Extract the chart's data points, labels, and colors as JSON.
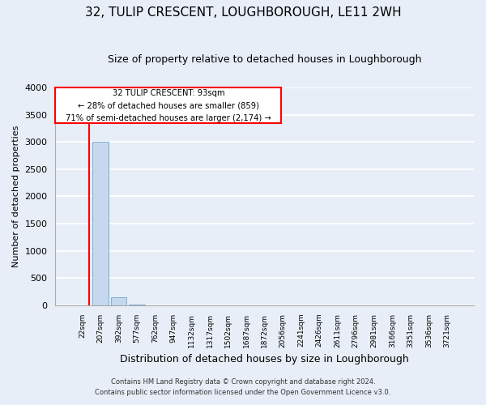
{
  "title": "32, TULIP CRESCENT, LOUGHBOROUGH, LE11 2WH",
  "subtitle": "Size of property relative to detached houses in Loughborough",
  "xlabel": "Distribution of detached houses by size in Loughborough",
  "ylabel": "Number of detached properties",
  "footnote1": "Contains HM Land Registry data © Crown copyright and database right 2024.",
  "footnote2": "Contains public sector information licensed under the Open Government Licence v3.0.",
  "categories": [
    "22sqm",
    "207sqm",
    "392sqm",
    "577sqm",
    "762sqm",
    "947sqm",
    "1132sqm",
    "1317sqm",
    "1502sqm",
    "1687sqm",
    "1872sqm",
    "2056sqm",
    "2241sqm",
    "2426sqm",
    "2611sqm",
    "2796sqm",
    "2981sqm",
    "3166sqm",
    "3351sqm",
    "3536sqm",
    "3721sqm"
  ],
  "values": [
    0,
    3000,
    150,
    5,
    2,
    1,
    1,
    0,
    0,
    0,
    0,
    0,
    0,
    0,
    0,
    0,
    0,
    0,
    0,
    0,
    0
  ],
  "bar_color": "#c5d8ed",
  "bar_edge_color": "#7aaed6",
  "ylim": [
    0,
    4000
  ],
  "yticks": [
    0,
    500,
    1000,
    1500,
    2000,
    2500,
    3000,
    3500,
    4000
  ],
  "annotation_line1": "32 TULIP CRESCENT: 93sqm",
  "annotation_line2": "← 28% of detached houses are smaller (859)",
  "annotation_line3": "71% of semi-detached houses are larger (2,174) →",
  "red_line_x": 0.38,
  "background_color": "#e8eef7",
  "grid_color": "#ffffff",
  "title_fontsize": 11,
  "subtitle_fontsize": 9,
  "ylabel_fontsize": 8,
  "xlabel_fontsize": 9
}
